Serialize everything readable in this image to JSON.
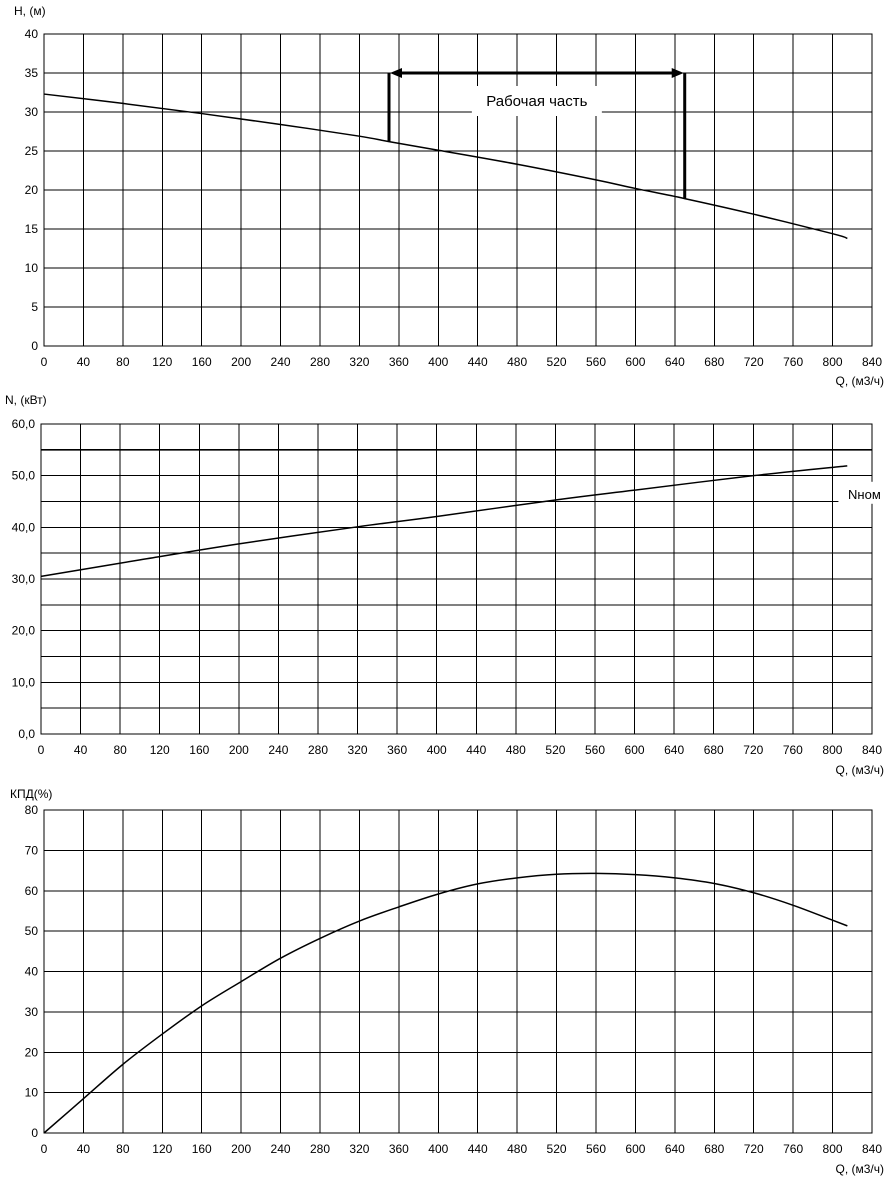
{
  "chart_data": [
    {
      "type": "line",
      "ylabel": "H, (м)",
      "xlabel": "Q, (м3/ч)",
      "xlim": [
        0,
        840
      ],
      "ylim": [
        0,
        40
      ],
      "x_ticks": [
        0,
        40,
        80,
        120,
        160,
        200,
        240,
        280,
        320,
        360,
        400,
        440,
        480,
        520,
        560,
        600,
        640,
        680,
        720,
        760,
        800,
        840
      ],
      "y_ticks": [
        0,
        5,
        10,
        15,
        20,
        25,
        30,
        35,
        40
      ],
      "y_tick_labels": [
        "0",
        "5",
        "10",
        "15",
        "20",
        "25",
        "30",
        "35",
        "40"
      ],
      "grid": true,
      "series": [
        {
          "x": [
            0,
            80,
            160,
            240,
            320,
            350,
            400,
            480,
            560,
            600,
            650,
            720,
            800,
            815
          ],
          "y": [
            32.3,
            31.1,
            29.8,
            28.4,
            26.9,
            26.2,
            25.1,
            23.3,
            21.3,
            20.2,
            18.9,
            16.9,
            14.4,
            13.8
          ]
        }
      ],
      "annotations": [
        {
          "type": "range",
          "text": "Рабочая часть",
          "x_start": 350,
          "x_end": 650,
          "y_arrow": 35,
          "y_start_bottom": 26.2,
          "y_end_bottom": 18.9
        }
      ]
    },
    {
      "type": "line",
      "ylabel": "N, (кВт)",
      "xlabel": "Q, (м3/ч)",
      "xlim": [
        0,
        840
      ],
      "ylim": [
        0,
        60
      ],
      "x_ticks": [
        0,
        40,
        80,
        120,
        160,
        200,
        240,
        280,
        320,
        360,
        400,
        440,
        480,
        520,
        560,
        600,
        640,
        680,
        720,
        760,
        800,
        840
      ],
      "y_ticks": [
        0,
        5,
        10,
        15,
        20,
        25,
        30,
        35,
        40,
        45,
        50,
        55,
        60
      ],
      "y_label_ticks": [
        0,
        10,
        20,
        30,
        40,
        50,
        60
      ],
      "y_tick_labels": [
        "0,0",
        "10,0",
        "20,0",
        "30,0",
        "40,0",
        "50,0",
        "60,0"
      ],
      "grid": true,
      "series": [
        {
          "x": [
            0,
            100,
            200,
            320,
            400,
            520,
            600,
            720,
            815
          ],
          "y": [
            30.5,
            33.7,
            36.8,
            40.1,
            42.1,
            45.3,
            47.2,
            50.0,
            51.9
          ]
        },
        {
          "name": "Nном",
          "x": [
            0,
            840
          ],
          "y": [
            55,
            55
          ]
        }
      ],
      "annotations": [
        {
          "type": "label",
          "text": "Nном",
          "x": 800,
          "y": 46.3
        }
      ]
    },
    {
      "type": "line",
      "ylabel": "КПД(%)",
      "xlabel": "Q, (м3/ч)",
      "xlim": [
        0,
        840
      ],
      "ylim": [
        0,
        80
      ],
      "x_ticks": [
        0,
        40,
        80,
        120,
        160,
        200,
        240,
        280,
        320,
        360,
        400,
        440,
        480,
        520,
        560,
        600,
        640,
        680,
        720,
        760,
        800,
        840
      ],
      "y_ticks": [
        0,
        10,
        20,
        30,
        40,
        50,
        60,
        70,
        80
      ],
      "y_tick_labels": [
        "0",
        "10",
        "20",
        "30",
        "40",
        "50",
        "60",
        "70",
        "80"
      ],
      "grid": true,
      "series": [
        {
          "x": [
            0,
            40,
            80,
            120,
            160,
            200,
            240,
            280,
            320,
            360,
            400,
            440,
            480,
            520,
            560,
            600,
            640,
            680,
            720,
            760,
            800,
            815
          ],
          "y": [
            0,
            8.5,
            17,
            24.5,
            31.5,
            37.5,
            43.3,
            48.2,
            52.5,
            56.0,
            59.2,
            61.7,
            63.2,
            64.1,
            64.3,
            64.0,
            63.2,
            61.8,
            59.5,
            56.4,
            52.7,
            51.3
          ]
        }
      ],
      "annotations": []
    }
  ]
}
